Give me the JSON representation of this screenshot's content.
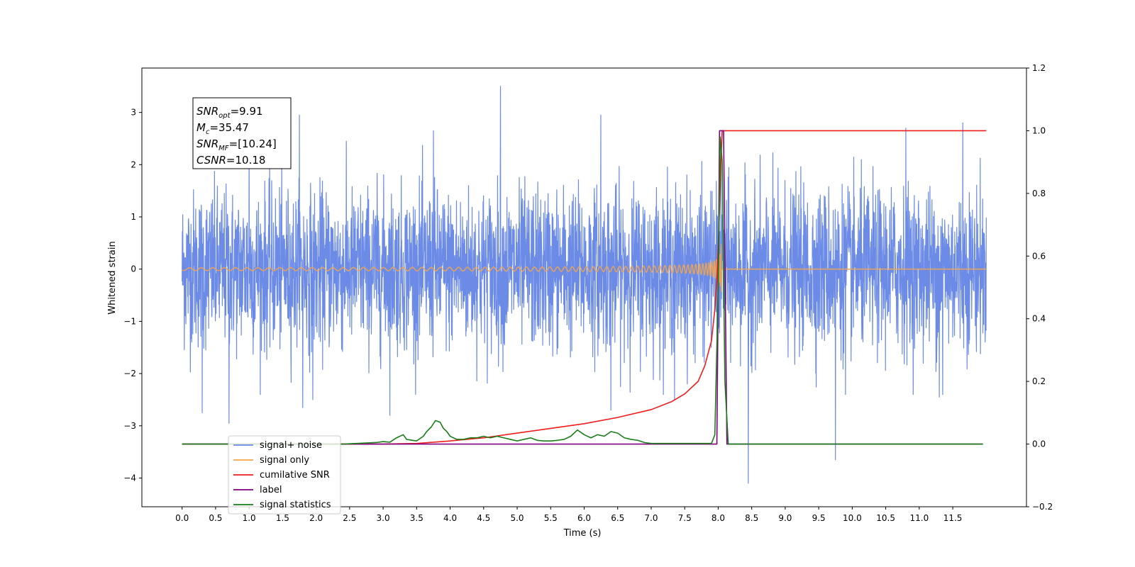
{
  "chart_data": {
    "type": "line",
    "xlabel": "Time (s)",
    "ylabel": "Whitened strain",
    "xlim": [
      -0.6,
      12.6
    ],
    "ylim_left": [
      -4.55,
      3.85
    ],
    "ylim_right": [
      -0.2,
      1.2
    ],
    "x_ticks": [
      "0.0",
      "0.5",
      "1.0",
      "1.5",
      "2.0",
      "2.5",
      "3.0",
      "3.5",
      "4.0",
      "4.5",
      "5.0",
      "5.5",
      "6.0",
      "6.5",
      "7.0",
      "7.5",
      "8.0",
      "8.5",
      "9.0",
      "9.5",
      "10.0",
      "10.5",
      "11.0",
      "11.5"
    ],
    "y_ticks_left": [
      "3",
      "2",
      "1",
      "0",
      "−1",
      "−2",
      "−3",
      "−4"
    ],
    "y_ticks_right": [
      "1.2",
      "1.0",
      "0.8",
      "0.6",
      "0.4",
      "0.2",
      "0.0",
      "−0.2"
    ],
    "legend_position": "lower-left",
    "annotation": {
      "lines": [
        {
          "sym": "SNR",
          "sub": "opt",
          "val": "=9.91"
        },
        {
          "sym": "M",
          "sub": "c",
          "val": "=35.47"
        },
        {
          "sym": "SNR",
          "sub": "MF",
          "val": "=[10.24]"
        },
        {
          "sym": "CSNR",
          "sub": "",
          "val": "=10.18"
        }
      ]
    },
    "series": [
      {
        "name": "signal+ noise",
        "axis": "left",
        "color": "#6b8be6",
        "style": "noise",
        "x_range": [
          0.0,
          12.0
        ],
        "noise_sigma": 0.75,
        "spikes": [
          {
            "x": 0.7,
            "y": -2.95
          },
          {
            "x": 1.0,
            "y": 2.6
          },
          {
            "x": 1.75,
            "y": 2.95
          },
          {
            "x": 1.8,
            "y": -2.65
          },
          {
            "x": 3.1,
            "y": -2.8
          },
          {
            "x": 3.75,
            "y": 2.65
          },
          {
            "x": 4.75,
            "y": 3.5
          },
          {
            "x": 6.25,
            "y": 2.95
          },
          {
            "x": 6.4,
            "y": -2.7
          },
          {
            "x": 8.45,
            "y": -4.1
          },
          {
            "x": 9.75,
            "y": -3.65
          },
          {
            "x": 10.8,
            "y": 2.7
          },
          {
            "x": 11.65,
            "y": 2.8
          },
          {
            "x": 11.3,
            "y": -2.45
          },
          {
            "x": 1.95,
            "y": -2.5
          },
          {
            "x": 9.9,
            "y": -2.4
          },
          {
            "x": 0.3,
            "y": -2.75
          },
          {
            "x": 7.35,
            "y": -2.5
          },
          {
            "x": 11.35,
            "y": -2.4
          }
        ]
      },
      {
        "name": "signal only",
        "axis": "left",
        "color": "#f4a44a",
        "style": "chirp",
        "x_range": [
          0.0,
          12.0
        ],
        "merger_time": 8.05
      },
      {
        "name": "cumilative SNR",
        "axis": "right",
        "color": "#ee1c1c",
        "points": [
          [
            0.0,
            0.0
          ],
          [
            3.0,
            0.0
          ],
          [
            3.5,
            0.002
          ],
          [
            4.0,
            0.01
          ],
          [
            4.5,
            0.02
          ],
          [
            5.0,
            0.035
          ],
          [
            5.5,
            0.05
          ],
          [
            6.0,
            0.065
          ],
          [
            6.5,
            0.085
          ],
          [
            7.0,
            0.11
          ],
          [
            7.3,
            0.135
          ],
          [
            7.5,
            0.16
          ],
          [
            7.7,
            0.2
          ],
          [
            7.8,
            0.25
          ],
          [
            7.9,
            0.33
          ],
          [
            7.95,
            0.43
          ],
          [
            7.98,
            0.52
          ],
          [
            8.0,
            0.63
          ],
          [
            8.02,
            0.75
          ],
          [
            8.04,
            0.9
          ],
          [
            8.06,
            1.0
          ],
          [
            12.0,
            1.0
          ]
        ]
      },
      {
        "name": "label",
        "axis": "right",
        "color": "#800080",
        "points": [
          [
            0.0,
            0.0
          ],
          [
            7.98,
            0.0
          ],
          [
            8.02,
            1.0
          ],
          [
            8.08,
            1.0
          ],
          [
            8.13,
            0.0
          ],
          [
            11.95,
            0.0
          ]
        ]
      },
      {
        "name": "signal statistics",
        "axis": "right",
        "color": "#1a7d1a",
        "points": [
          [
            0.0,
            0.0
          ],
          [
            2.4,
            0.0
          ],
          [
            2.6,
            0.002
          ],
          [
            2.9,
            0.005
          ],
          [
            3.0,
            0.008
          ],
          [
            3.1,
            0.006
          ],
          [
            3.2,
            0.02
          ],
          [
            3.3,
            0.03
          ],
          [
            3.35,
            0.015
          ],
          [
            3.5,
            0.01
          ],
          [
            3.6,
            0.025
          ],
          [
            3.65,
            0.04
          ],
          [
            3.72,
            0.055
          ],
          [
            3.78,
            0.075
          ],
          [
            3.85,
            0.07
          ],
          [
            3.9,
            0.05
          ],
          [
            3.95,
            0.04
          ],
          [
            4.0,
            0.025
          ],
          [
            4.1,
            0.015
          ],
          [
            4.2,
            0.015
          ],
          [
            4.3,
            0.02
          ],
          [
            4.4,
            0.02
          ],
          [
            4.5,
            0.025
          ],
          [
            4.6,
            0.02
          ],
          [
            4.7,
            0.025
          ],
          [
            4.8,
            0.02
          ],
          [
            4.9,
            0.015
          ],
          [
            5.0,
            0.01
          ],
          [
            5.1,
            0.015
          ],
          [
            5.2,
            0.02
          ],
          [
            5.3,
            0.012
          ],
          [
            5.4,
            0.01
          ],
          [
            5.5,
            0.01
          ],
          [
            5.6,
            0.012
          ],
          [
            5.7,
            0.015
          ],
          [
            5.8,
            0.025
          ],
          [
            5.9,
            0.045
          ],
          [
            6.0,
            0.03
          ],
          [
            6.1,
            0.02
          ],
          [
            6.2,
            0.03
          ],
          [
            6.3,
            0.025
          ],
          [
            6.4,
            0.04
          ],
          [
            6.5,
            0.035
          ],
          [
            6.6,
            0.02
          ],
          [
            6.7,
            0.015
          ],
          [
            6.8,
            0.012
          ],
          [
            6.9,
            0.005
          ],
          [
            7.0,
            0.002
          ],
          [
            7.5,
            0.002
          ],
          [
            7.9,
            0.002
          ],
          [
            7.95,
            0.03
          ],
          [
            8.0,
            0.5
          ],
          [
            8.03,
            0.98
          ],
          [
            8.06,
            0.9
          ],
          [
            8.1,
            0.2
          ],
          [
            8.15,
            0.0
          ],
          [
            11.95,
            0.0
          ]
        ]
      }
    ]
  }
}
